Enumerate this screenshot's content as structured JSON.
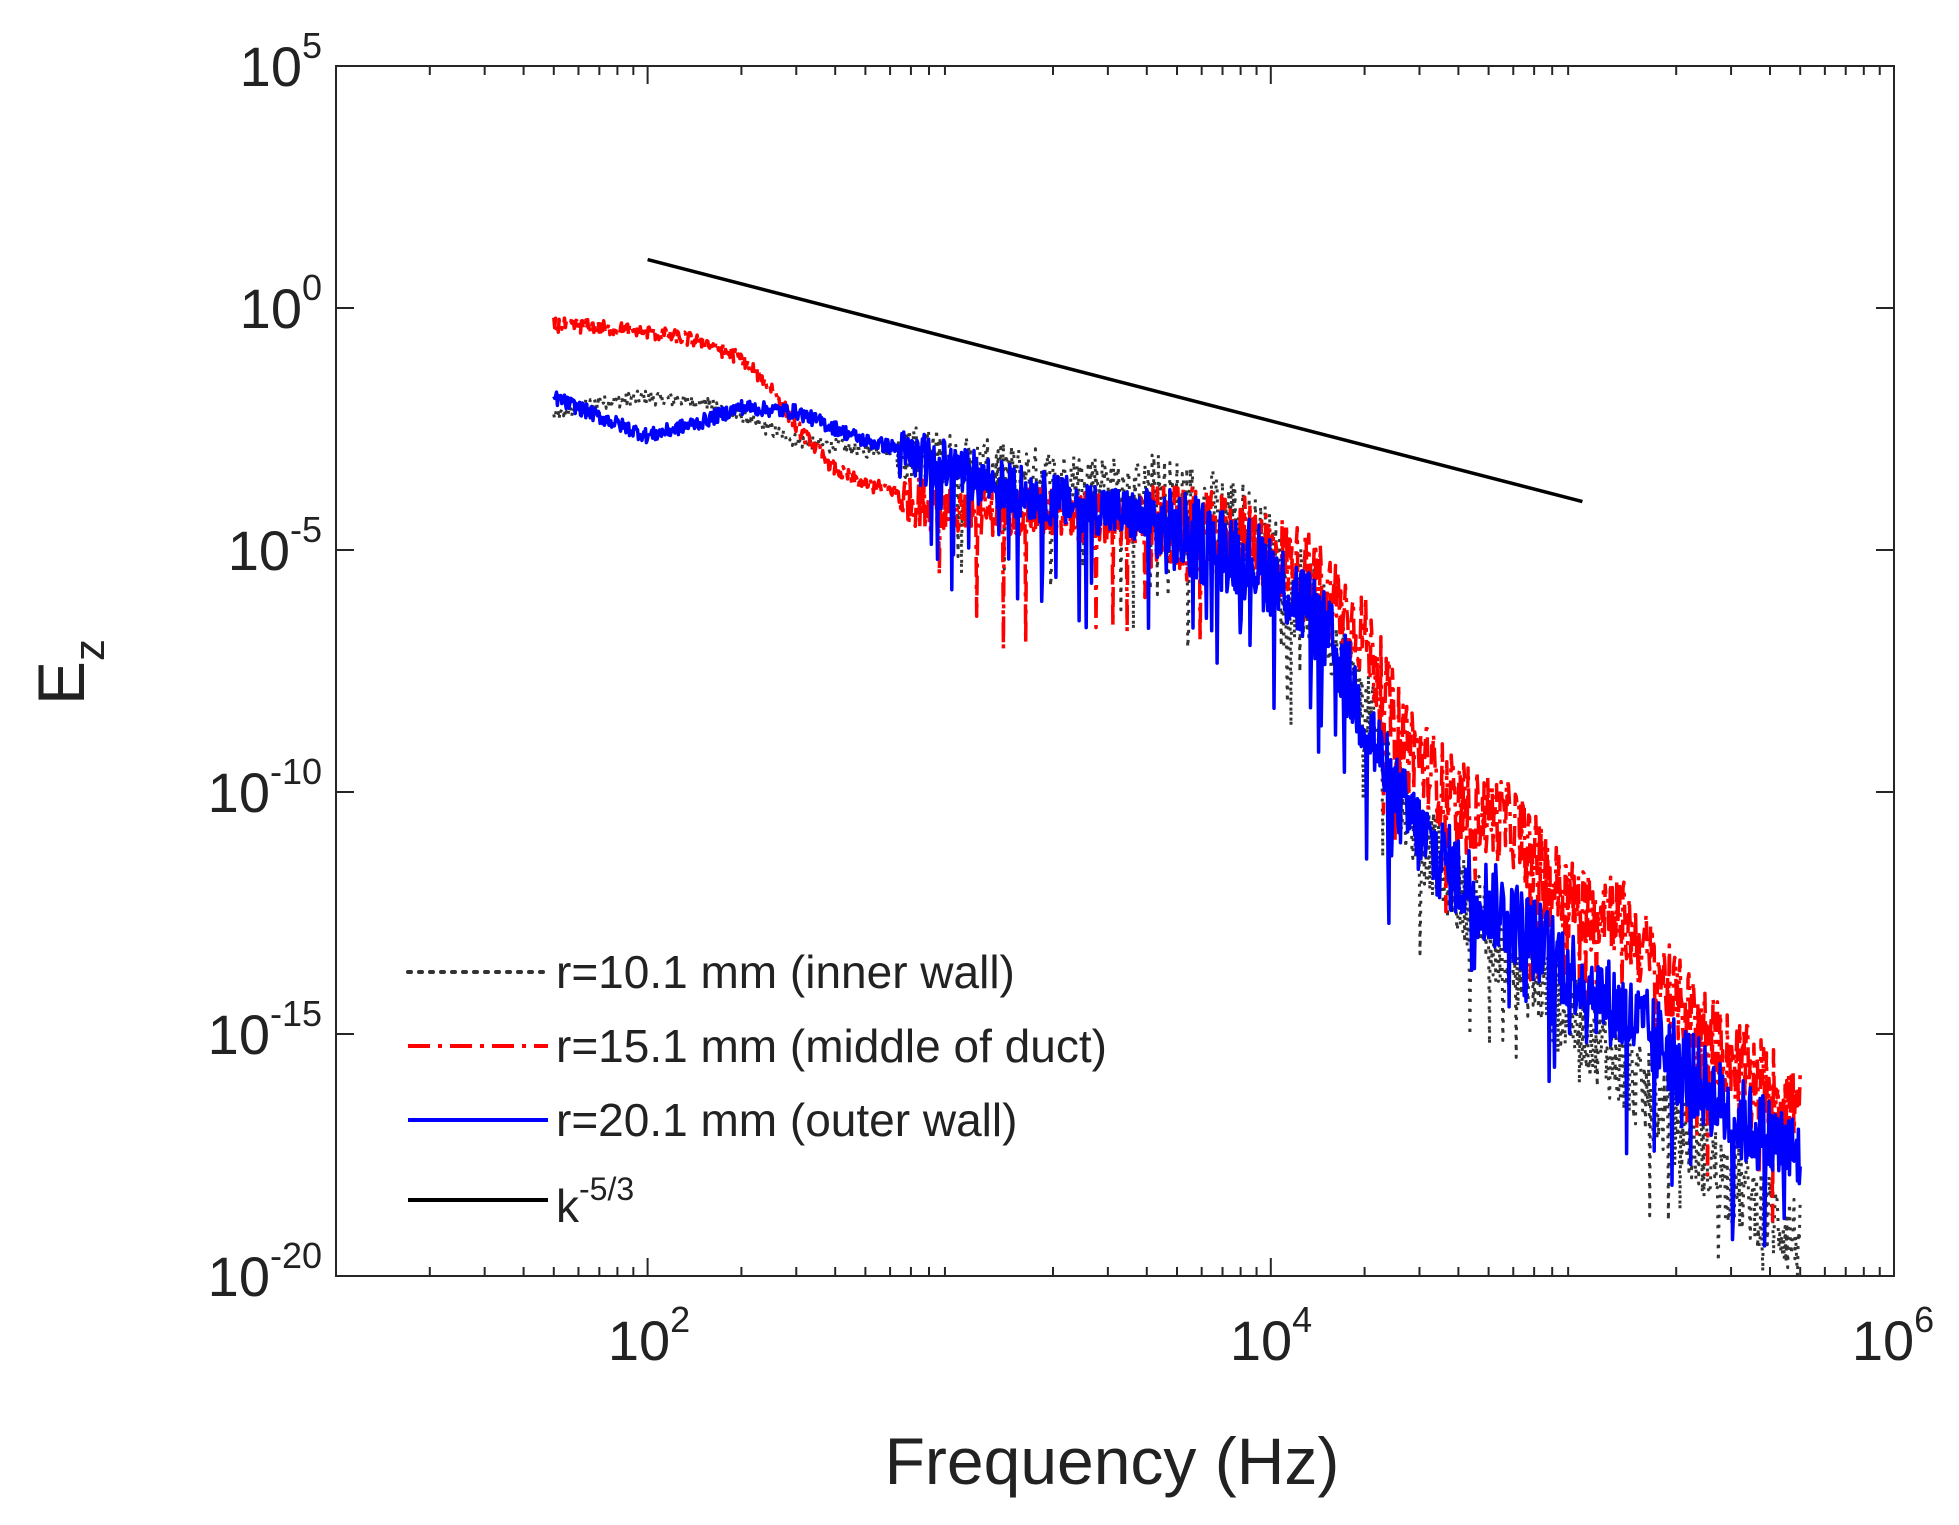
{
  "chart_data": {
    "type": "line",
    "x_scale": "log",
    "y_scale": "log",
    "xlabel": "Frequency (Hz)",
    "ylabel": {
      "base": "E",
      "subscript": "z"
    },
    "xlim": [
      10,
      1000000
    ],
    "ylim": [
      1e-20,
      100000
    ],
    "x_ticks": [
      {
        "value": 100,
        "base": "10",
        "exp": "2"
      },
      {
        "value": 10000,
        "base": "10",
        "exp": "4"
      },
      {
        "value": 1000000,
        "base": "10",
        "exp": "6"
      }
    ],
    "y_ticks": [
      {
        "value": 100000,
        "base": "10",
        "exp": "5"
      },
      {
        "value": 1,
        "base": "10",
        "exp": "0"
      },
      {
        "value": 1e-05,
        "base": "10",
        "exp": "-5"
      },
      {
        "value": 1e-10,
        "base": "10",
        "exp": "-10"
      },
      {
        "value": 1e-15,
        "base": "10",
        "exp": "-15"
      },
      {
        "value": 1e-20,
        "base": "10",
        "exp": "-20"
      }
    ],
    "grid": false,
    "box": true,
    "legend_position": "bottom-left",
    "series": [
      {
        "name": "r=10.1 mm (inner wall)",
        "legend_text": "r=10.1 mm (inner wall)",
        "color": "#333333",
        "line_style": "dotted",
        "points": [
          [
            50,
            -2.2
          ],
          [
            70,
            -1.9
          ],
          [
            100,
            -1.8
          ],
          [
            150,
            -1.9
          ],
          [
            200,
            -2.2
          ],
          [
            300,
            -2.7
          ],
          [
            500,
            -2.9
          ],
          [
            800,
            -2.8
          ],
          [
            1000,
            -3.0
          ],
          [
            1500,
            -3.2
          ],
          [
            2000,
            -3.3
          ],
          [
            3000,
            -3.4
          ],
          [
            5000,
            -3.7
          ],
          [
            8000,
            -4.1
          ],
          [
            10000,
            -4.8
          ],
          [
            13000,
            -5.7
          ],
          [
            16000,
            -6.6
          ],
          [
            20000,
            -8.0
          ],
          [
            25000,
            -9.5
          ],
          [
            30000,
            -10.6
          ],
          [
            40000,
            -11.8
          ],
          [
            60000,
            -13.2
          ],
          [
            100000,
            -14.6
          ],
          [
            200000,
            -16.6
          ],
          [
            300000,
            -17.8
          ],
          [
            500000,
            -19.0
          ]
        ]
      },
      {
        "name": "r=15.1 mm (middle of duct)",
        "legend_text": "r=15.1 mm (middle of duct)",
        "color": "#ff0000",
        "line_style": "dashdot",
        "points": [
          [
            50,
            -0.3
          ],
          [
            70,
            -0.35
          ],
          [
            100,
            -0.45
          ],
          [
            150,
            -0.65
          ],
          [
            200,
            -1.0
          ],
          [
            250,
            -1.6
          ],
          [
            300,
            -2.4
          ],
          [
            400,
            -3.3
          ],
          [
            500,
            -3.6
          ],
          [
            700,
            -3.8
          ],
          [
            1000,
            -4.0
          ],
          [
            1500,
            -4.0
          ],
          [
            2000,
            -4.1
          ],
          [
            3000,
            -4.2
          ],
          [
            5000,
            -4.3
          ],
          [
            8000,
            -4.5
          ],
          [
            10000,
            -4.7
          ],
          [
            15000,
            -5.5
          ],
          [
            20000,
            -6.5
          ],
          [
            25000,
            -8.2
          ],
          [
            30000,
            -9.0
          ],
          [
            40000,
            -10.0
          ],
          [
            60000,
            -10.4
          ],
          [
            80000,
            -11.6
          ],
          [
            100000,
            -12.2
          ],
          [
            120000,
            -12.0
          ],
          [
            150000,
            -12.8
          ],
          [
            200000,
            -14.0
          ],
          [
            300000,
            -15.2
          ],
          [
            500000,
            -16.3
          ]
        ]
      },
      {
        "name": "r=20.1 mm (outer wall)",
        "legend_text": "r=20.1 mm (outer wall)",
        "color": "#0000ff",
        "line_style": "solid",
        "points": [
          [
            50,
            -1.8
          ],
          [
            70,
            -2.2
          ],
          [
            100,
            -2.6
          ],
          [
            150,
            -2.3
          ],
          [
            200,
            -2.0
          ],
          [
            300,
            -2.1
          ],
          [
            500,
            -2.7
          ],
          [
            800,
            -3.0
          ],
          [
            1000,
            -3.2
          ],
          [
            1500,
            -3.6
          ],
          [
            2000,
            -3.8
          ],
          [
            3000,
            -4.0
          ],
          [
            5000,
            -4.4
          ],
          [
            8000,
            -4.8
          ],
          [
            10000,
            -5.2
          ],
          [
            13000,
            -5.9
          ],
          [
            16000,
            -6.8
          ],
          [
            20000,
            -8.2
          ],
          [
            25000,
            -9.8
          ],
          [
            30000,
            -10.6
          ],
          [
            40000,
            -11.5
          ],
          [
            60000,
            -12.4
          ],
          [
            100000,
            -13.6
          ],
          [
            200000,
            -15.2
          ],
          [
            300000,
            -16.4
          ],
          [
            500000,
            -17.3
          ]
        ]
      },
      {
        "name": "k^-5/3",
        "legend_text": {
          "base": "k",
          "exp": "-5/3"
        },
        "color": "#000000",
        "line_style": "solid",
        "points": [
          [
            100,
            1.0
          ],
          [
            100000,
            -4.0
          ]
        ]
      }
    ]
  }
}
